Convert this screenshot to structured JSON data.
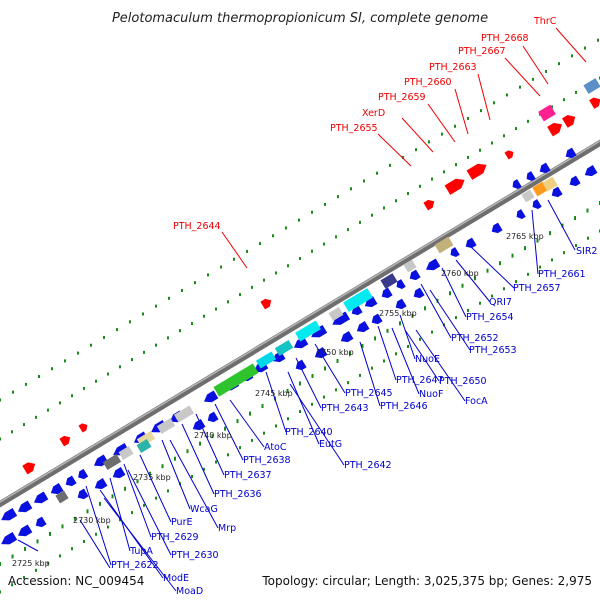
{
  "title": "Pelotomaculum thermopropionicum SI, complete genome",
  "footer": {
    "accession": "Accession: NC_009454",
    "topology": "Topology: circular; Length: 3,025,375 bp; Genes: 2,975"
  },
  "colors": {
    "backbone": "#7a7a7a",
    "forward_gene": "#ff0000",
    "reverse_gene": "#0000ee",
    "label_red": "#ee0000",
    "label_blue": "#0000cc",
    "tick": "#1a8a1a"
  },
  "scale_labels": [
    "2725 kbp",
    "2730 kbp",
    "2735 kbp",
    "2740 kbp",
    "2745 kbp",
    "2750 kbp",
    "2755 kbp",
    "2760 kbp",
    "2765 kbp"
  ],
  "forward_labels": [
    "ThrC",
    "PTH_2668",
    "PTH_2667",
    "PTH_2663",
    "PTH_2660",
    "PTH_2659",
    "XerD",
    "PTH_2655",
    "PTH_2644"
  ],
  "reverse_labels": [
    "SIR2",
    "PTH_2661",
    "PTH_2657",
    "QRI7",
    "PTH_2654",
    "PTH_2652",
    "PTH_2653",
    "PTH_2650",
    "NuoE",
    "PTH_2647",
    "NuoF",
    "FocA",
    "PTH_2645",
    "PTH_2646",
    "PTH_2643",
    "PTH_2640",
    "EutG",
    "PTH_2642",
    "AtoC",
    "PTH_2638",
    "PTH_2637",
    "PTH_2636",
    "WcaG",
    "Mrp",
    "PurE",
    "PTH_2629",
    "PTH_2630",
    "TupA",
    "PTH_2622",
    "ModE",
    "MoaD"
  ]
}
